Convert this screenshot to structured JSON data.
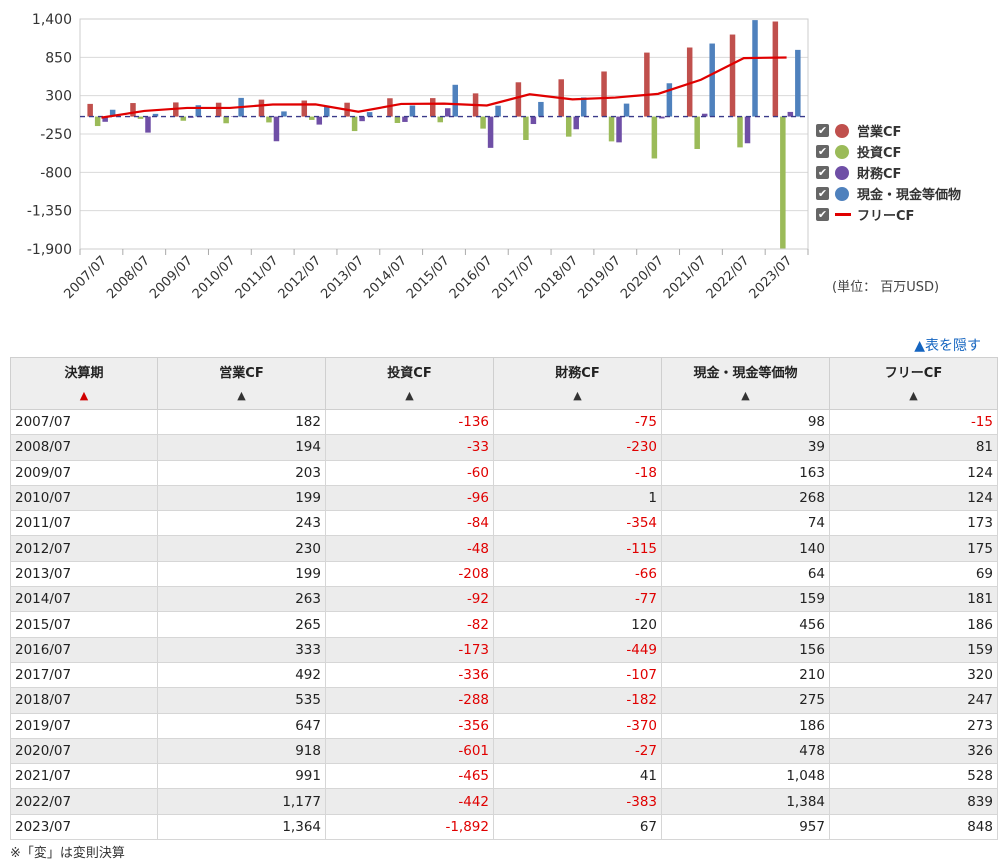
{
  "chart_data": {
    "type": "bar",
    "categories": [
      "2007/07",
      "2008/07",
      "2009/07",
      "2010/07",
      "2011/07",
      "2012/07",
      "2013/07",
      "2014/07",
      "2015/07",
      "2016/07",
      "2017/07",
      "2018/07",
      "2019/07",
      "2020/07",
      "2021/07",
      "2022/07",
      "2023/07"
    ],
    "series": [
      {
        "name": "営業CF",
        "kind": "bar",
        "color": "#c0504d",
        "values": [
          182,
          194,
          203,
          199,
          243,
          230,
          199,
          263,
          265,
          333,
          492,
          535,
          647,
          918,
          991,
          1177,
          1364
        ]
      },
      {
        "name": "投資CF",
        "kind": "bar",
        "color": "#9bbb59",
        "values": [
          -136,
          -33,
          -60,
          -96,
          -84,
          -48,
          -208,
          -92,
          -82,
          -173,
          -336,
          -288,
          -356,
          -601,
          -465,
          -442,
          -1892
        ]
      },
      {
        "name": "財務CF",
        "kind": "bar",
        "color": "#6f4fa6",
        "values": [
          -75,
          -230,
          -18,
          1,
          -354,
          -115,
          -66,
          -77,
          120,
          -449,
          -107,
          -182,
          -370,
          -27,
          41,
          -383,
          67
        ]
      },
      {
        "name": "現金・現金等価物",
        "kind": "bar",
        "color": "#4f81bd",
        "values": [
          98,
          39,
          163,
          268,
          74,
          140,
          64,
          159,
          456,
          156,
          210,
          275,
          186,
          478,
          1048,
          1384,
          957
        ]
      },
      {
        "name": "フリーCF",
        "kind": "line",
        "color": "#e00000",
        "values": [
          -15,
          81,
          124,
          124,
          173,
          175,
          69,
          181,
          186,
          159,
          320,
          247,
          273,
          326,
          528,
          839,
          848
        ]
      }
    ],
    "yticks": [
      1400,
      850,
      300,
      -250,
      -800,
      -1350,
      -1900
    ],
    "ytick_labels": [
      "1,400",
      "850",
      "300",
      "-250",
      "-800",
      "-1,350",
      "-1,900"
    ],
    "ylim": [
      -1900,
      1400
    ],
    "unit_label": "(単位： 百万USD)",
    "legend_position": "right",
    "grid": true
  },
  "legend": {
    "items": [
      {
        "label": "営業CF",
        "color": "#c0504d",
        "type": "dot"
      },
      {
        "label": "投資CF",
        "color": "#9bbb59",
        "type": "dot"
      },
      {
        "label": "財務CF",
        "color": "#6f4fa6",
        "type": "dot"
      },
      {
        "label": "現金・現金等価物",
        "color": "#4f81bd",
        "type": "dot"
      },
      {
        "label": "フリーCF",
        "color": "#e00000",
        "type": "line"
      }
    ],
    "checkmark": "✔"
  },
  "toggle_label": "▲表を隠す",
  "table": {
    "headers": [
      "決算期",
      "営業CF",
      "投資CF",
      "財務CF",
      "現金・現金等価物",
      "フリーCF"
    ],
    "sort_arrows": [
      "▲",
      "▲",
      "▲",
      "▲",
      "▲",
      "▲"
    ],
    "rows": [
      [
        "2007/07",
        "182",
        "-136",
        "-75",
        "98",
        "-15"
      ],
      [
        "2008/07",
        "194",
        "-33",
        "-230",
        "39",
        "81"
      ],
      [
        "2009/07",
        "203",
        "-60",
        "-18",
        "163",
        "124"
      ],
      [
        "2010/07",
        "199",
        "-96",
        "1",
        "268",
        "124"
      ],
      [
        "2011/07",
        "243",
        "-84",
        "-354",
        "74",
        "173"
      ],
      [
        "2012/07",
        "230",
        "-48",
        "-115",
        "140",
        "175"
      ],
      [
        "2013/07",
        "199",
        "-208",
        "-66",
        "64",
        "69"
      ],
      [
        "2014/07",
        "263",
        "-92",
        "-77",
        "159",
        "181"
      ],
      [
        "2015/07",
        "265",
        "-82",
        "120",
        "456",
        "186"
      ],
      [
        "2016/07",
        "333",
        "-173",
        "-449",
        "156",
        "159"
      ],
      [
        "2017/07",
        "492",
        "-336",
        "-107",
        "210",
        "320"
      ],
      [
        "2018/07",
        "535",
        "-288",
        "-182",
        "275",
        "247"
      ],
      [
        "2019/07",
        "647",
        "-356",
        "-370",
        "186",
        "273"
      ],
      [
        "2020/07",
        "918",
        "-601",
        "-27",
        "478",
        "326"
      ],
      [
        "2021/07",
        "991",
        "-465",
        "41",
        "1,048",
        "528"
      ],
      [
        "2022/07",
        "1,177",
        "-442",
        "-383",
        "1,384",
        "839"
      ],
      [
        "2023/07",
        "1,364",
        "-1,892",
        "67",
        "957",
        "848"
      ]
    ]
  },
  "note": "※「変」は変則決算"
}
